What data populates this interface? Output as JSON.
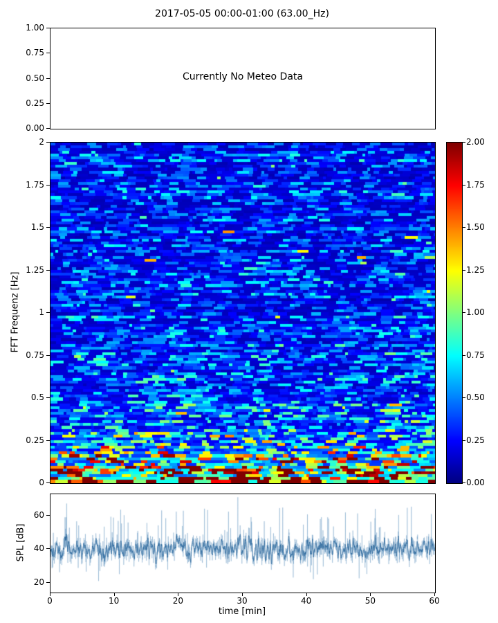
{
  "figure": {
    "title": "2017-05-05 00:00-01:00 (63.00_Hz)"
  },
  "meteo_panel": {
    "message": "Currently No Meteo Data",
    "ytick_labels": [
      "1.00",
      "0.75",
      "0.50",
      "0.25",
      "0.00"
    ]
  },
  "spectrogram": {
    "ylabel": "FFT Frequenz [Hz]",
    "ytick_labels": [
      "2",
      "1.75",
      "1.5",
      "1.25",
      "1",
      "0.75",
      "0.5",
      "0.25",
      "0"
    ]
  },
  "colorbar": {
    "tick_labels": [
      "2.00",
      "1.75",
      "1.50",
      "1.25",
      "1.00",
      "0.75",
      "0.50",
      "0.25",
      "0.00"
    ]
  },
  "spl_panel": {
    "ylabel": "SPL [dB]",
    "xlabel": "time [min]",
    "ytick_labels": [
      "60",
      "40",
      "20"
    ],
    "xtick_labels": [
      "0",
      "10",
      "20",
      "30",
      "40",
      "50",
      "60"
    ]
  },
  "chart_data": [
    {
      "id": "meteo",
      "type": "line",
      "title": "2017-05-05 00:00-01:00 (63.00_Hz)",
      "annotation": "Currently No Meteo Data",
      "series": [],
      "xlim": [
        0,
        1
      ],
      "ylim": [
        0,
        1
      ],
      "yticks": [
        0,
        0.25,
        0.5,
        0.75,
        1
      ],
      "grid": false,
      "note": "empty axes, no meteo data available"
    },
    {
      "id": "spectrogram",
      "type": "heatmap",
      "xlabel": "time [min]",
      "ylabel": "FFT Frequenz [Hz]",
      "xlim": [
        0,
        60
      ],
      "ylim": [
        0,
        2
      ],
      "vlim": [
        0,
        2
      ],
      "colormap": "jet",
      "colorbar_ticks": [
        0,
        0.25,
        0.5,
        0.75,
        1,
        1.25,
        1.5,
        1.75,
        2
      ],
      "seed": 1337,
      "rows": 120,
      "freq_profile": [
        {
          "f_max": 0.04,
          "mean": 1.95
        },
        {
          "f_max": 0.09,
          "mean": 1.55
        },
        {
          "f_max": 0.15,
          "mean": 1.15
        },
        {
          "f_max": 0.22,
          "mean": 0.9
        },
        {
          "f_max": 0.32,
          "mean": 0.65
        },
        {
          "f_max": 0.5,
          "mean": 0.5
        },
        {
          "f_max": 1.0,
          "mean": 0.4
        },
        {
          "f_max": 2.0,
          "mean": 0.34
        }
      ],
      "description": "FFT modulation spectrogram, mostly low values (blue) above 0.5 Hz, increasing energy toward 0 Hz with saturated dark-red band below ~0.1 Hz"
    },
    {
      "id": "spl",
      "type": "line",
      "ylabel": "SPL [dB]",
      "xlabel": "time [min]",
      "xlim": [
        0,
        60
      ],
      "ylim": [
        14,
        73
      ],
      "yticks": [
        20,
        40,
        60
      ],
      "xticks": [
        0,
        10,
        20,
        30,
        40,
        50,
        60
      ],
      "baseline_db": 40,
      "noise_std_db": 4,
      "spike_max_db": 72,
      "min_db": 18,
      "n_points": 3000,
      "seed": 7,
      "color": "#4682b4",
      "description": "1-second SPL time series fluctuating around 40 dB with spikes up to ~70 dB and dips to ~20 dB"
    }
  ]
}
